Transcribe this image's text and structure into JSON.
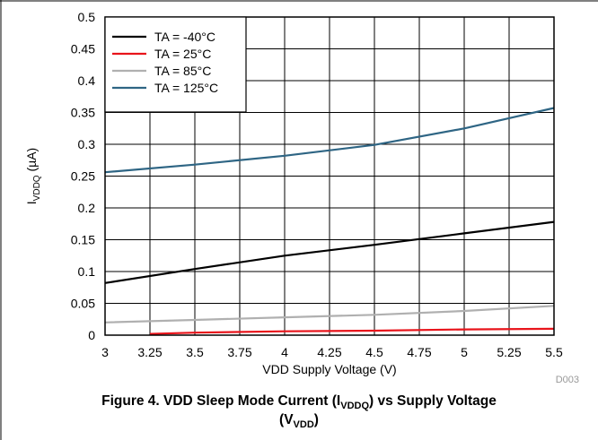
{
  "chart_data": {
    "type": "line",
    "xlabel": "VDD Supply Voltage (V)",
    "ylabel": {
      "main": "I",
      "sub": "VDDQ",
      "rest": " (µA)"
    },
    "xlim": [
      3,
      5.5
    ],
    "ylim": [
      0,
      0.5
    ],
    "x_ticks": [
      "3",
      "3.25",
      "3.5",
      "3.75",
      "4",
      "4.25",
      "4.5",
      "4.75",
      "5",
      "5.25",
      "5.5"
    ],
    "y_ticks": [
      "0",
      "0.05",
      "0.1",
      "0.15",
      "0.2",
      "0.25",
      "0.3",
      "0.35",
      "0.4",
      "0.45",
      "0.5"
    ],
    "grid": true,
    "legend_position": "top-left",
    "series": [
      {
        "name": "TA = -40°C",
        "color": "#000000",
        "x": [
          3,
          3.5,
          4,
          4.5,
          5,
          5.5
        ],
        "y": [
          0.082,
          0.104,
          0.125,
          0.142,
          0.16,
          0.178
        ]
      },
      {
        "name": "TA = 25°C",
        "color": "#e8141b",
        "x": [
          3.25,
          3.5,
          4,
          4.5,
          5,
          5.5
        ],
        "y": [
          0.002,
          0.004,
          0.006,
          0.007,
          0.009,
          0.01
        ]
      },
      {
        "name": "TA = 85°C",
        "color": "#b0b0b0",
        "x": [
          3,
          3.5,
          4,
          4.5,
          5,
          5.5
        ],
        "y": [
          0.02,
          0.024,
          0.028,
          0.032,
          0.038,
          0.046
        ]
      },
      {
        "name": "TA = 125°C",
        "color": "#2e6584",
        "x": [
          3,
          3.5,
          4,
          4.5,
          5,
          5.5
        ],
        "y": [
          0.256,
          0.268,
          0.282,
          0.299,
          0.325,
          0.357
        ]
      }
    ],
    "code": "D003"
  },
  "caption": {
    "line1_a": "Figure 4. VDD Sleep Mode Current (I",
    "line1_sub": "VDDQ",
    "line1_b": ") vs Supply Voltage",
    "line2_a": "(V",
    "line2_sub": "VDD",
    "line2_b": ")"
  }
}
